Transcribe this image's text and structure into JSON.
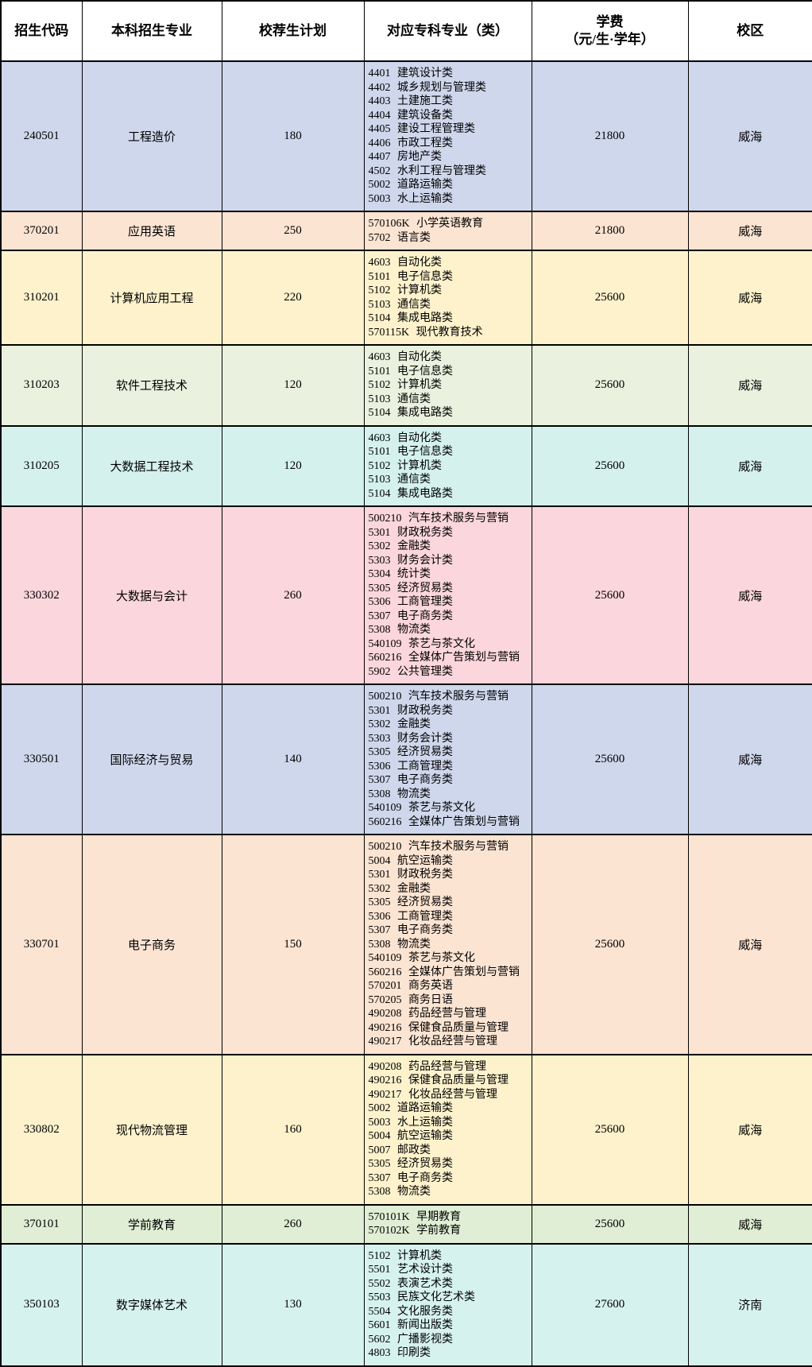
{
  "table": {
    "headers": {
      "code": "招生代码",
      "major": "本科招生专业",
      "plan": "校荐生计划",
      "college_majors": "对应专科专业（类）",
      "tuition_line1": "学费",
      "tuition_line2": "（元/生·学年）",
      "campus": "校区"
    },
    "rows": [
      {
        "code": "240501",
        "major": "工程造价",
        "plan": "180",
        "college_majors": [
          "4401 建筑设计类",
          "4402 城乡规划与管理类",
          "4403 土建施工类",
          "4404 建筑设备类",
          "4405 建设工程管理类",
          "4406 市政工程类",
          "4407 房地产类",
          "4502 水利工程与管理类",
          "5002 道路运输类",
          "5003 水上运输类"
        ],
        "tuition": "21800",
        "campus": "威海",
        "bg": "#cfd7ec"
      },
      {
        "code": "370201",
        "major": "应用英语",
        "plan": "250",
        "college_majors": [
          "570106K 小学英语教育",
          "5702 语言类"
        ],
        "tuition": "21800",
        "campus": "威海",
        "bg": "#fce4d2"
      },
      {
        "code": "310201",
        "major": "计算机应用工程",
        "plan": "220",
        "college_majors": [
          "4603 自动化类",
          "5101 电子信息类",
          "5102 计算机类",
          "5103 通信类",
          "5104 集成电路类",
          "570115K 现代教育技术"
        ],
        "tuition": "25600",
        "campus": "威海",
        "bg": "#fdf2cc"
      },
      {
        "code": "310203",
        "major": "软件工程技术",
        "plan": "120",
        "college_majors": [
          "4603 自动化类",
          "5101 电子信息类",
          "5102 计算机类",
          "5103 通信类",
          "5104 集成电路类"
        ],
        "tuition": "25600",
        "campus": "威海",
        "bg": "#eaf1de"
      },
      {
        "code": "310205",
        "major": "大数据工程技术",
        "plan": "120",
        "college_majors": [
          "4603 自动化类",
          "5101 电子信息类",
          "5102 计算机类",
          "5103 通信类",
          "5104 集成电路类"
        ],
        "tuition": "25600",
        "campus": "威海",
        "bg": "#d4f1ee"
      },
      {
        "code": "330302",
        "major": "大数据与会计",
        "plan": "260",
        "college_majors": [
          "500210 汽车技术服务与营销",
          "5301 财政税务类",
          "5302 金融类",
          "5303 财务会计类",
          "5304 统计类",
          "5305 经济贸易类",
          "5306 工商管理类",
          "5307 电子商务类",
          "5308 物流类",
          "540109 茶艺与茶文化",
          "560216 全媒体广告策划与营销",
          "5902 公共管理类"
        ],
        "tuition": "25600",
        "campus": "威海",
        "bg": "#fbd6dc"
      },
      {
        "code": "330501",
        "major": "国际经济与贸易",
        "plan": "140",
        "college_majors": [
          "500210 汽车技术服务与营销",
          "5301 财政税务类",
          "5302 金融类",
          "5303 财务会计类",
          "5305 经济贸易类",
          "5306 工商管理类",
          "5307 电子商务类",
          "5308 物流类",
          "540109 茶艺与茶文化",
          "560216 全媒体广告策划与营销"
        ],
        "tuition": "25600",
        "campus": "威海",
        "bg": "#cfd7ec"
      },
      {
        "code": "330701",
        "major": "电子商务",
        "plan": "150",
        "college_majors": [
          "500210 汽车技术服务与营销",
          "5004 航空运输类",
          "5301 财政税务类",
          "5302 金融类",
          "5305 经济贸易类",
          "5306 工商管理类",
          "5307 电子商务类",
          "5308 物流类",
          "540109 茶艺与茶文化",
          "560216 全媒体广告策划与营销",
          "570201 商务英语",
          "570205 商务日语",
          "490208 药品经营与管理",
          "490216 保健食品质量与管理",
          "490217 化妆品经营与管理"
        ],
        "tuition": "25600",
        "campus": "威海",
        "bg": "#fce4d2"
      },
      {
        "code": "330802",
        "major": "现代物流管理",
        "plan": "160",
        "college_majors": [
          "490208 药品经营与管理",
          "490216 保健食品质量与管理",
          "490217 化妆品经营与管理",
          "5002 道路运输类",
          "5003 水上运输类",
          "5004 航空运输类",
          "5007 邮政类",
          "5305 经济贸易类",
          "5307 电子商务类",
          "5308 物流类"
        ],
        "tuition": "25600",
        "campus": "威海",
        "bg": "#fdf2cc"
      },
      {
        "code": "370101",
        "major": "学前教育",
        "plan": "260",
        "college_majors": [
          "570101K 早期教育",
          "570102K 学前教育"
        ],
        "tuition": "25600",
        "campus": "威海",
        "bg": "#dfeed4"
      },
      {
        "code": "350103",
        "major": "数字媒体艺术",
        "plan": "130",
        "college_majors": [
          "5102 计算机类",
          "5501 艺术设计类",
          "5502 表演艺术类",
          "5503 民族文化艺术类",
          "5504 文化服务类",
          "5601 新闻出版类",
          "5602 广播影视类",
          "4803 印刷类"
        ],
        "tuition": "27600",
        "campus": "济南",
        "bg": "#d6f2ef"
      }
    ]
  },
  "colors": {
    "grid_border": "#000000",
    "header_bg": "#ffffff",
    "row_periwinkle": "#cfd7ec",
    "row_peach": "#fce4d2",
    "row_yellow": "#fdf2cc",
    "row_green_light": "#eaf1de",
    "row_cyan": "#d4f1ee",
    "row_pink": "#fbd6dc",
    "row_green": "#dfeed4",
    "row_cyan2": "#d6f2ef"
  }
}
